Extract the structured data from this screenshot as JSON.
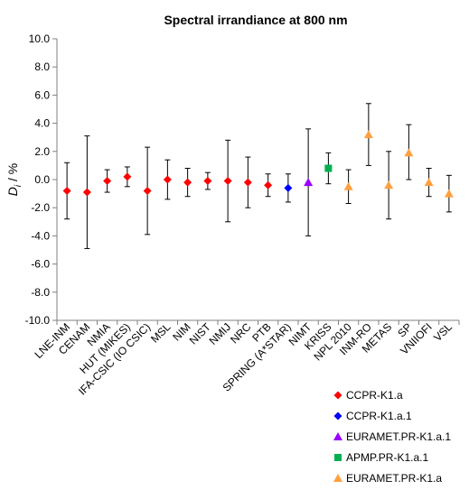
{
  "chart_data": {
    "type": "scatter",
    "title": "Spectral irrandiance at 800 nm",
    "xlabel": "",
    "ylabel": "D",
    "ylabel_sub": "i",
    "ylabel_suffix": " / %",
    "ylim": [
      -10,
      10
    ],
    "yticks": [
      "10.0",
      "8.0",
      "6.0",
      "4.0",
      "2.0",
      "0.0",
      "-2.0",
      "-4.0",
      "-6.0",
      "-8.0",
      "-10.0"
    ],
    "categories": [
      "LNE-INM",
      "CENAM",
      "NMIA",
      "HUT (MIKES)",
      "IFA-CSIC (IO CSIC)",
      "MSL",
      "NIM",
      "NIST",
      "NMIJ",
      "NRC",
      "PTB",
      "SPRING (A*STAR)",
      "NIMT",
      "KRISS",
      "NPL 2010",
      "INM-RO",
      "METAS",
      "SP",
      "VNIIOFI",
      "VSL"
    ],
    "grid": false,
    "legend_position": "bottom-right",
    "series": [
      {
        "name": "CCPR-K1.a",
        "color": "#ff0000",
        "marker": "diamond",
        "points": [
          {
            "x": "LNE-INM",
            "y": -0.8,
            "lo": -2.8,
            "hi": 1.2
          },
          {
            "x": "CENAM",
            "y": -0.9,
            "lo": -4.9,
            "hi": 3.1
          },
          {
            "x": "NMIA",
            "y": -0.1,
            "lo": -0.9,
            "hi": 0.7
          },
          {
            "x": "HUT (MIKES)",
            "y": 0.2,
            "lo": -0.5,
            "hi": 0.9
          },
          {
            "x": "IFA-CSIC (IO CSIC)",
            "y": -0.8,
            "lo": -3.9,
            "hi": 2.3
          },
          {
            "x": "MSL",
            "y": 0.0,
            "lo": -1.4,
            "hi": 1.4
          },
          {
            "x": "NIM",
            "y": -0.2,
            "lo": -1.2,
            "hi": 0.8
          },
          {
            "x": "NIST",
            "y": -0.1,
            "lo": -0.7,
            "hi": 0.5
          },
          {
            "x": "NMIJ",
            "y": -0.1,
            "lo": -3.0,
            "hi": 2.8
          },
          {
            "x": "NRC",
            "y": -0.2,
            "lo": -2.0,
            "hi": 1.6
          },
          {
            "x": "PTB",
            "y": -0.4,
            "lo": -1.2,
            "hi": 0.4
          }
        ]
      },
      {
        "name": "CCPR-K1.a.1",
        "color": "#0000ff",
        "marker": "diamond",
        "points": [
          {
            "x": "SPRING (A*STAR)",
            "y": -0.6,
            "lo": -1.6,
            "hi": 0.4
          }
        ]
      },
      {
        "name": "EURAMET.PR-K1.a.1",
        "color": "#9900ff",
        "marker": "triangle",
        "points": [
          {
            "x": "NIMT",
            "y": -0.2,
            "lo": -4.0,
            "hi": 3.6
          }
        ]
      },
      {
        "name": "APMP.PR-K1.a.1",
        "color": "#00b050",
        "marker": "square",
        "points": [
          {
            "x": "KRISS",
            "y": 0.8,
            "lo": -0.3,
            "hi": 1.9
          }
        ]
      },
      {
        "name": "EURAMET.PR-K1.a",
        "color": "#ffa040",
        "marker": "triangle",
        "points": [
          {
            "x": "NPL 2010",
            "y": -0.5,
            "lo": -1.7,
            "hi": 0.7
          },
          {
            "x": "INM-RO",
            "y": 3.2,
            "lo": 1.0,
            "hi": 5.4
          },
          {
            "x": "METAS",
            "y": -0.4,
            "lo": -2.8,
            "hi": 2.0
          },
          {
            "x": "SP",
            "y": 1.9,
            "lo": 0.0,
            "hi": 3.9
          },
          {
            "x": "VNIIOFI",
            "y": -0.2,
            "lo": -1.2,
            "hi": 0.8
          },
          {
            "x": "VSL",
            "y": -1.0,
            "lo": -2.3,
            "hi": 0.3
          }
        ]
      }
    ]
  }
}
